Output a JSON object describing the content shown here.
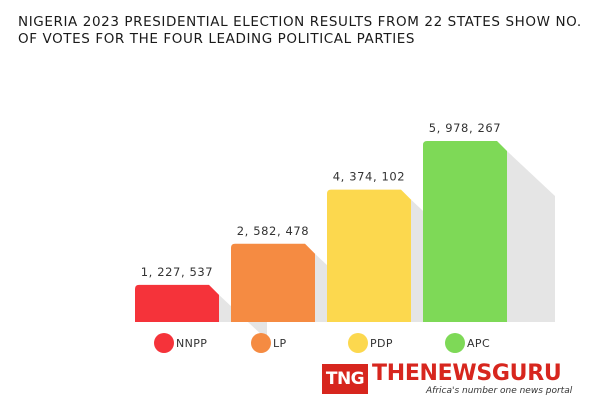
{
  "chart_data": {
    "type": "bar",
    "title": "NIGERIA 2023 PRESIDENTIAL ELECTION RESULTS FROM 22 STATES SHOW NO. OF VOTES FOR THE FOUR LEADING POLITICAL PARTIES",
    "categories": [
      "NNPP",
      "LP",
      "PDP",
      "APC"
    ],
    "values": [
      1227537,
      2582478,
      4374102,
      5978267
    ],
    "value_labels": [
      "1, 227, 537",
      "2, 582, 478",
      "4, 374, 102",
      "5, 978, 267"
    ],
    "colors": [
      "#f5333a",
      "#f58b42",
      "#fcd84e",
      "#7ed957"
    ],
    "legend_position": "bottom",
    "grid": false
  },
  "brand": {
    "logo_text": "TNG",
    "name": "THENEWSGURU",
    "tagline": "Africa's number one news portal"
  }
}
